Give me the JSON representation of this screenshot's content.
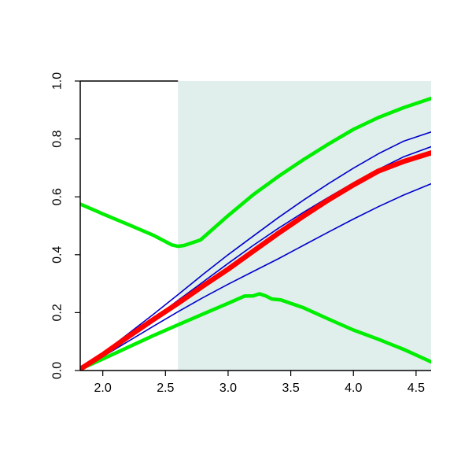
{
  "chart_data": {
    "type": "line",
    "title": "",
    "xlabel": "",
    "ylabel": "",
    "xlim": [
      1.82,
      4.62
    ],
    "ylim": [
      0.0,
      1.0
    ],
    "x_ticks": [
      "2.0",
      "2.5",
      "3.0",
      "3.5",
      "4.0",
      "4.5"
    ],
    "y_ticks": [
      "0.0",
      "0.2",
      "0.4",
      "0.6",
      "0.8",
      "1.0"
    ],
    "grid": false,
    "legend": "none",
    "shaded_region": {
      "x_from": 2.6,
      "x_to": 4.62,
      "color": "#e0eeec"
    },
    "colors": {
      "red": "#ff0000",
      "blue": "#0000cc",
      "green": "#00ee00",
      "axis": "#000000"
    },
    "series": [
      {
        "color": "#00ee00",
        "width": "thick",
        "points": [
          [
            1.82,
            0.575
          ],
          [
            2.0,
            0.541
          ],
          [
            2.2,
            0.505
          ],
          [
            2.4,
            0.468
          ],
          [
            2.55,
            0.434
          ],
          [
            2.6,
            0.429
          ],
          [
            2.65,
            0.432
          ],
          [
            2.78,
            0.451
          ],
          [
            3.0,
            0.535
          ],
          [
            3.2,
            0.607
          ],
          [
            3.4,
            0.67
          ],
          [
            3.6,
            0.728
          ],
          [
            3.8,
            0.782
          ],
          [
            4.0,
            0.833
          ],
          [
            4.2,
            0.874
          ],
          [
            4.4,
            0.908
          ],
          [
            4.62,
            0.94
          ]
        ]
      },
      {
        "color": "#00ee00",
        "width": "thick",
        "points": [
          [
            1.82,
            0.005
          ],
          [
            2.0,
            0.04
          ],
          [
            2.2,
            0.08
          ],
          [
            2.4,
            0.12
          ],
          [
            2.6,
            0.158
          ],
          [
            2.8,
            0.195
          ],
          [
            3.0,
            0.232
          ],
          [
            3.13,
            0.257
          ],
          [
            3.2,
            0.258
          ],
          [
            3.25,
            0.265
          ],
          [
            3.3,
            0.258
          ],
          [
            3.35,
            0.247
          ],
          [
            3.42,
            0.244
          ],
          [
            3.6,
            0.217
          ],
          [
            3.8,
            0.178
          ],
          [
            4.0,
            0.14
          ],
          [
            4.2,
            0.108
          ],
          [
            4.4,
            0.073
          ],
          [
            4.62,
            0.03
          ]
        ]
      },
      {
        "color": "#0000cc",
        "width": "thin",
        "points": [
          [
            1.82,
            0.005
          ],
          [
            2.0,
            0.056
          ],
          [
            2.2,
            0.116
          ],
          [
            2.4,
            0.178
          ],
          [
            2.6,
            0.242
          ],
          [
            2.8,
            0.306
          ],
          [
            3.0,
            0.37
          ],
          [
            3.2,
            0.432
          ],
          [
            3.4,
            0.491
          ],
          [
            3.6,
            0.546
          ],
          [
            3.8,
            0.598
          ],
          [
            4.0,
            0.648
          ],
          [
            4.2,
            0.695
          ],
          [
            4.4,
            0.738
          ],
          [
            4.62,
            0.773
          ]
        ]
      },
      {
        "color": "#0000cc",
        "width": "thin",
        "points": [
          [
            1.82,
            0.005
          ],
          [
            2.0,
            0.06
          ],
          [
            2.2,
            0.126
          ],
          [
            2.4,
            0.193
          ],
          [
            2.6,
            0.262
          ],
          [
            2.8,
            0.332
          ],
          [
            3.0,
            0.4
          ],
          [
            3.2,
            0.464
          ],
          [
            3.4,
            0.528
          ],
          [
            3.6,
            0.588
          ],
          [
            3.8,
            0.645
          ],
          [
            4.0,
            0.699
          ],
          [
            4.2,
            0.749
          ],
          [
            4.4,
            0.792
          ],
          [
            4.62,
            0.824
          ]
        ]
      },
      {
        "color": "#0000cc",
        "width": "thin",
        "points": [
          [
            1.82,
            0.005
          ],
          [
            2.0,
            0.048
          ],
          [
            2.2,
            0.1
          ],
          [
            2.4,
            0.152
          ],
          [
            2.6,
            0.203
          ],
          [
            2.8,
            0.252
          ],
          [
            3.0,
            0.298
          ],
          [
            3.2,
            0.342
          ],
          [
            3.4,
            0.386
          ],
          [
            3.6,
            0.432
          ],
          [
            3.8,
            0.478
          ],
          [
            4.0,
            0.523
          ],
          [
            4.2,
            0.566
          ],
          [
            4.4,
            0.606
          ],
          [
            4.62,
            0.645
          ]
        ]
      },
      {
        "color": "#ff0000",
        "width": "extra-thick",
        "points": [
          [
            1.82,
            0.005
          ],
          [
            2.0,
            0.055
          ],
          [
            2.2,
            0.116
          ],
          [
            2.4,
            0.175
          ],
          [
            2.6,
            0.232
          ],
          [
            2.8,
            0.292
          ],
          [
            3.0,
            0.35
          ],
          [
            3.2,
            0.412
          ],
          [
            3.4,
            0.474
          ],
          [
            3.6,
            0.533
          ],
          [
            3.8,
            0.589
          ],
          [
            4.0,
            0.641
          ],
          [
            4.2,
            0.689
          ],
          [
            4.4,
            0.722
          ],
          [
            4.62,
            0.752
          ]
        ]
      }
    ]
  }
}
